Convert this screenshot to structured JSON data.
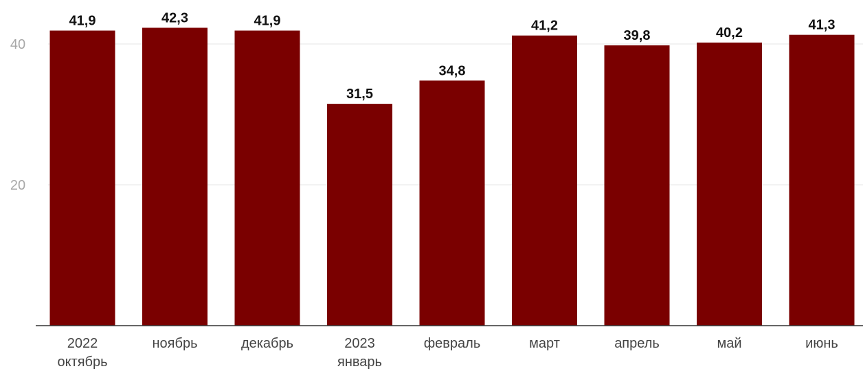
{
  "chart_data": {
    "type": "bar",
    "categories": [
      [
        "2022",
        "октябрь"
      ],
      [
        "ноябрь"
      ],
      [
        "декабрь"
      ],
      [
        "2023",
        "январь"
      ],
      [
        "февраль"
      ],
      [
        "март"
      ],
      [
        "апрель"
      ],
      [
        "май"
      ],
      [
        "июнь"
      ]
    ],
    "values": [
      41.9,
      42.3,
      41.9,
      31.5,
      34.8,
      41.2,
      39.8,
      40.2,
      41.3
    ],
    "value_labels": [
      "41,9",
      "42,3",
      "41,9",
      "31,5",
      "34,8",
      "41,2",
      "39,8",
      "40,2",
      "41,3"
    ],
    "yticks": [
      20,
      40
    ],
    "ylim": [
      0,
      45
    ],
    "grid": true,
    "legend": "none",
    "title": "",
    "xlabel": "",
    "ylabel": "",
    "colors": {
      "bar": "#7a0000"
    }
  }
}
